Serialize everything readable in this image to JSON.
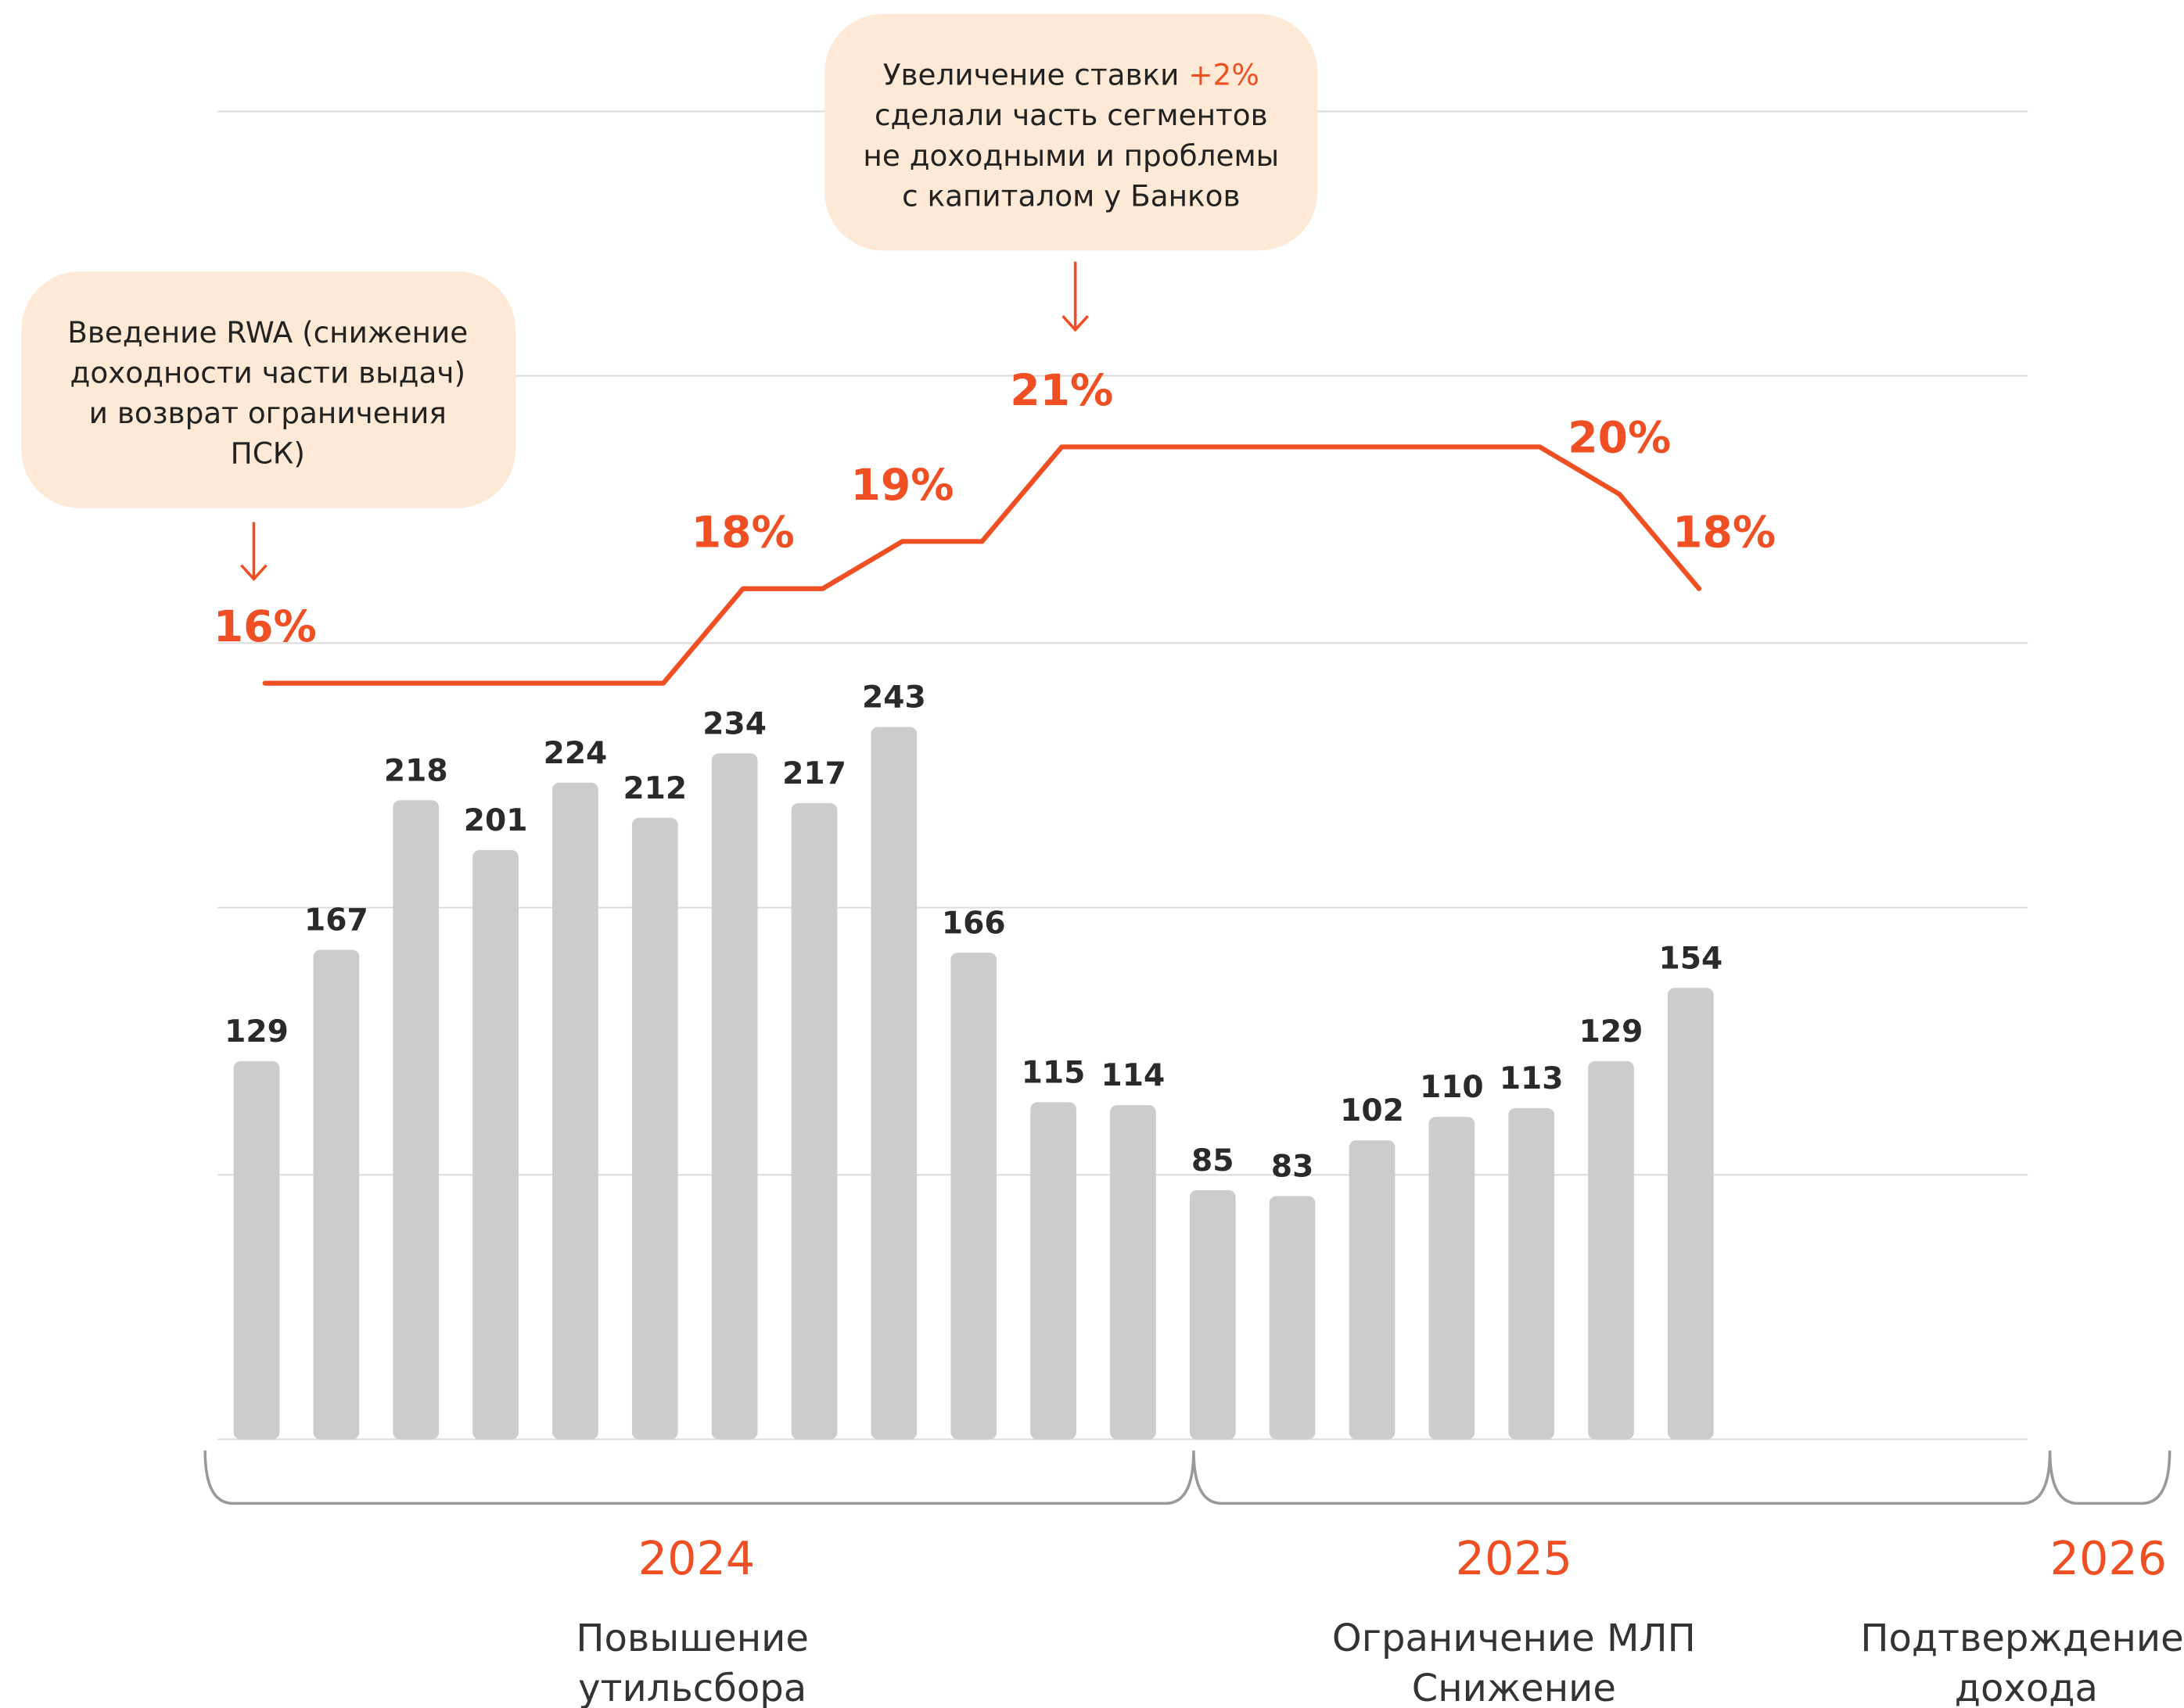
{
  "chart_data": {
    "type": "bar",
    "series": [
      {
        "type": "bar",
        "color": "#cccccc",
        "values": [
          129,
          167,
          218,
          201,
          224,
          212,
          234,
          217,
          243,
          166,
          115,
          114,
          85,
          83,
          102,
          110,
          113,
          129,
          154
        ]
      },
      {
        "type": "line",
        "axis": "y2",
        "color": "#f04e23",
        "values": [
          16,
          16,
          16,
          16,
          16,
          16,
          18,
          18,
          19,
          19,
          21,
          21,
          21,
          21,
          21,
          21,
          21,
          20,
          18
        ],
        "value_labels": [
          "16%",
          null,
          null,
          null,
          null,
          null,
          "18%",
          null,
          "19%",
          null,
          "21%",
          null,
          null,
          null,
          null,
          null,
          null,
          "20%",
          "18%"
        ]
      }
    ],
    "ylim": [
      0,
      453
    ],
    "y2lim": [
      0,
      28.1
    ],
    "annotations": [
      {
        "lines": [
          "Введение RWA (снижение",
          "доходности части выдач)",
          "и возврат ограничения",
          "ПСК)"
        ]
      },
      {
        "lead": "Увеличение ставки ",
        "highlight": "+2%",
        "lines": [
          "сделали часть сегментов",
          "не доходными и проблемы",
          "с капиталом у Банков"
        ]
      }
    ],
    "periods": [
      {
        "year": "2024",
        "note": [
          "Повышение",
          "утильсбора"
        ]
      },
      {
        "year": "2025",
        "note": [
          "Ограничение МЛП",
          "Снижение"
        ]
      },
      {
        "year": "2026",
        "note": [
          "Подтверждение",
          "дохода"
        ]
      }
    ]
  }
}
